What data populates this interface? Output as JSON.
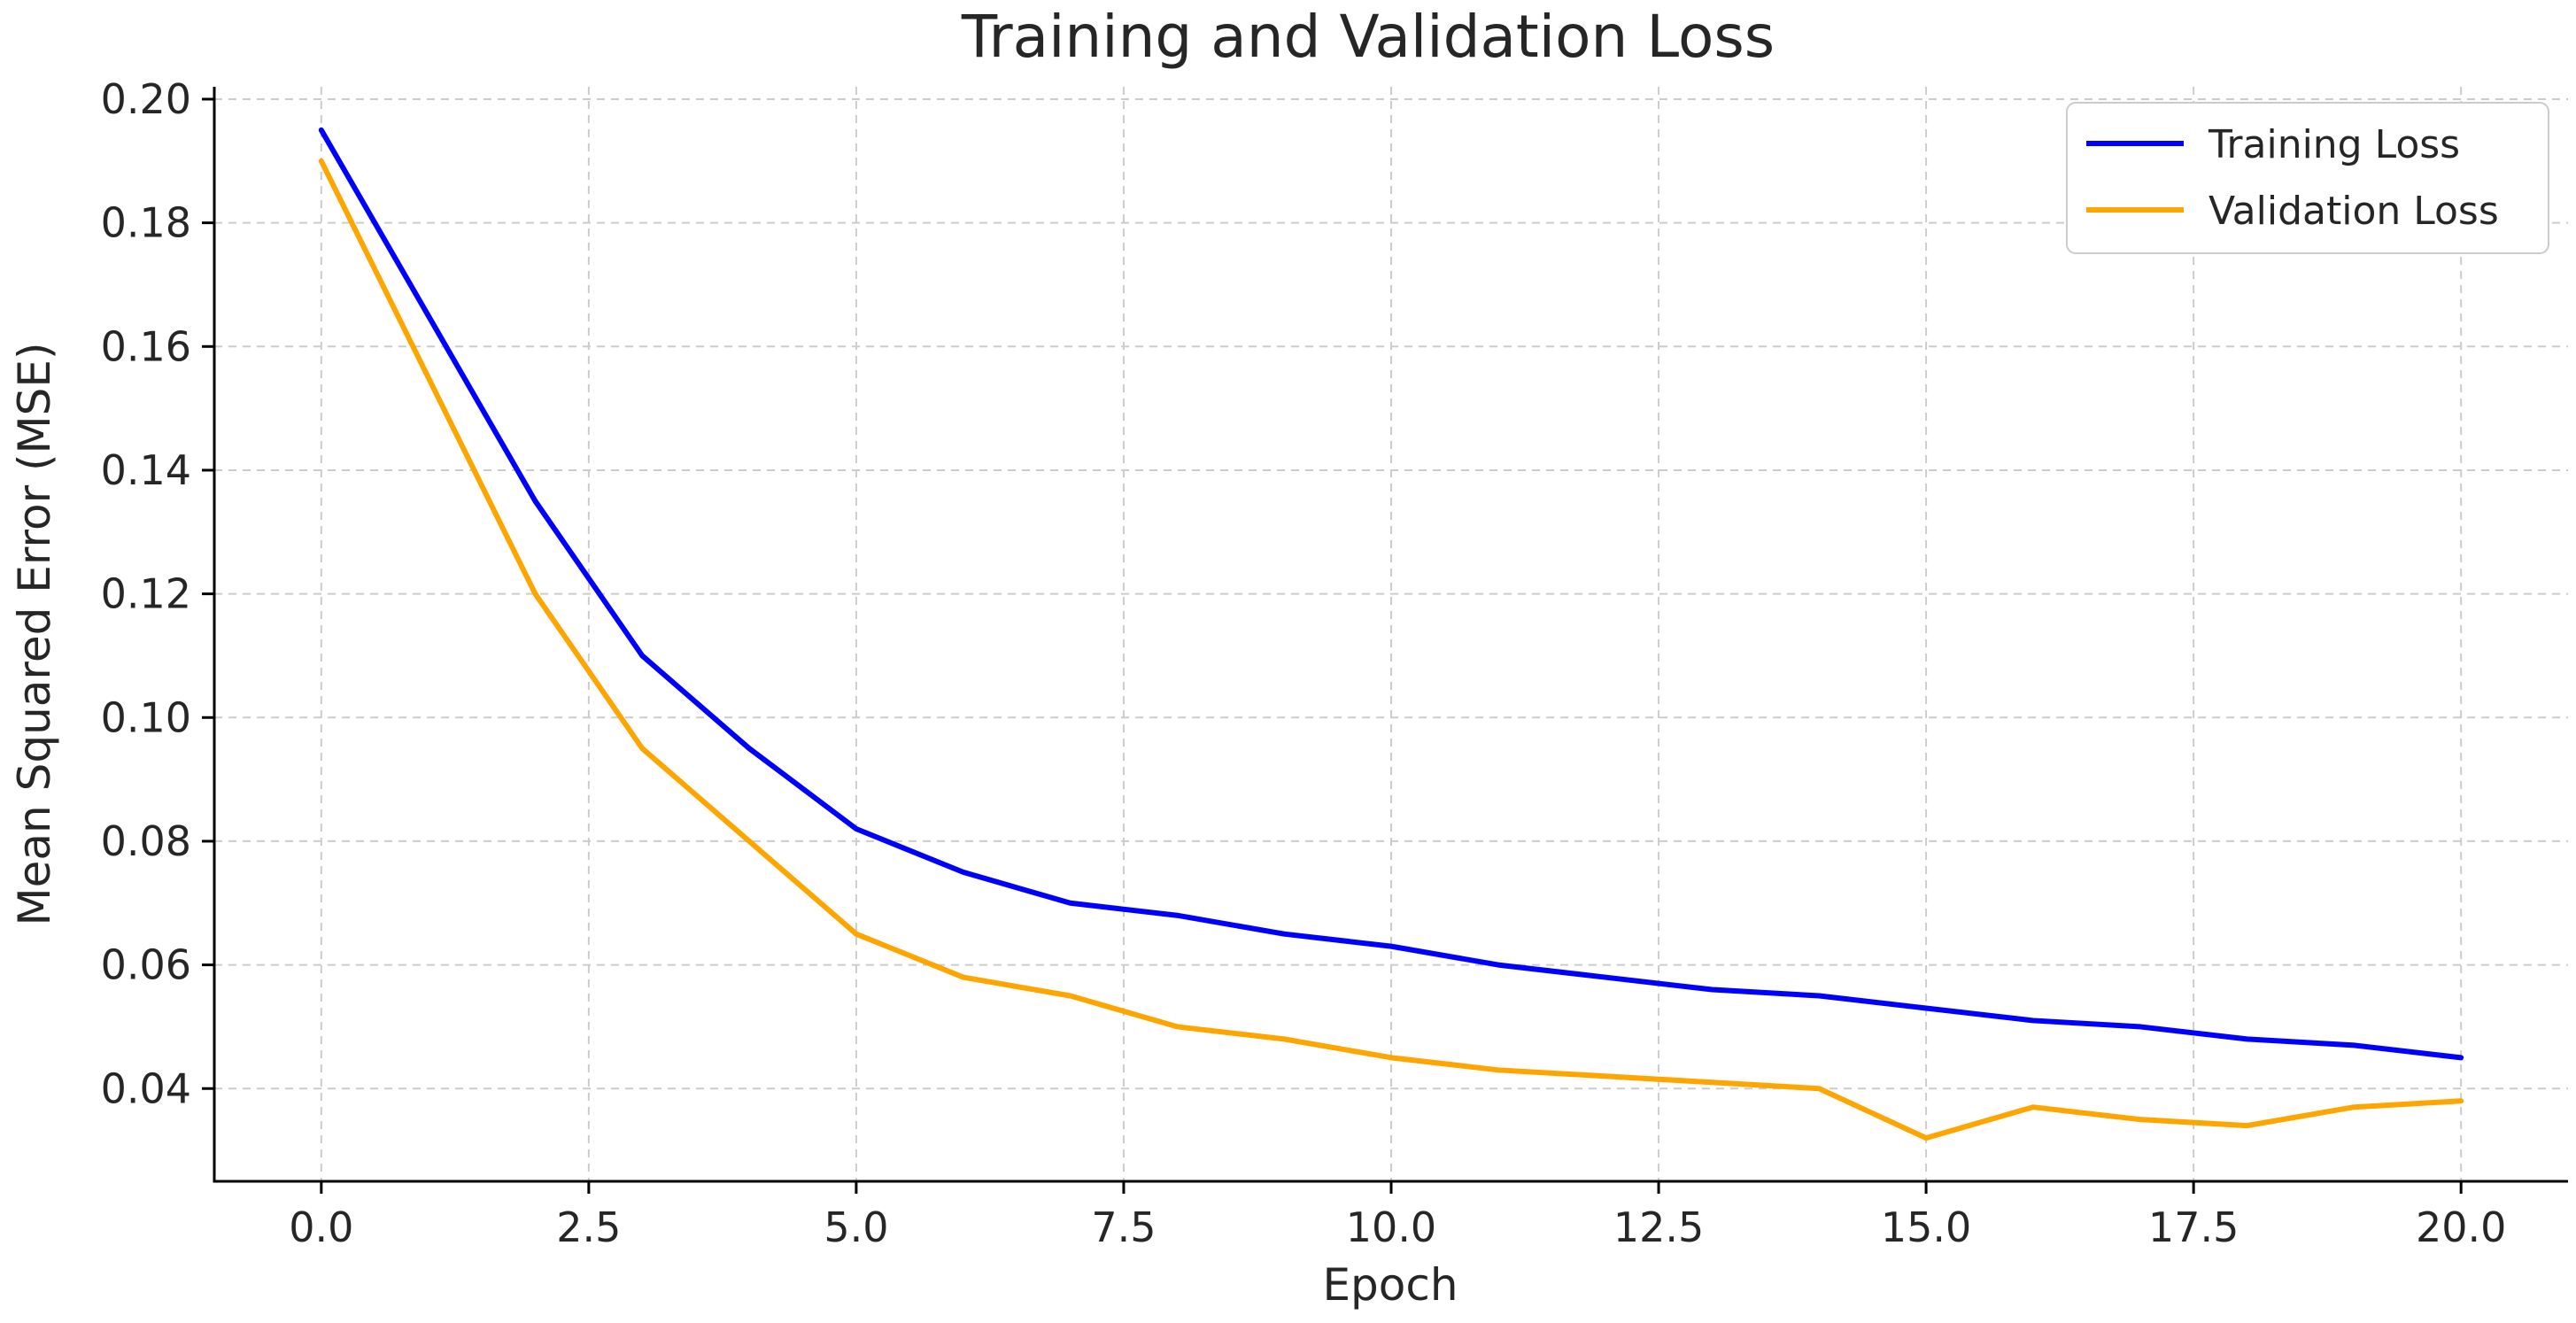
{
  "chart_data": {
    "type": "line",
    "title": "Training and Validation Loss",
    "xlabel": "Epoch",
    "ylabel": "Mean Squared Error (MSE)",
    "xlim": [
      -1,
      21
    ],
    "ylim": [
      0.025,
      0.202
    ],
    "xticks": [
      0,
      2.5,
      5,
      7.5,
      10,
      12.5,
      15,
      17.5,
      20
    ],
    "xtick_labels": [
      "0.0",
      "2.5",
      "5.0",
      "7.5",
      "10.0",
      "12.5",
      "15.0",
      "17.5",
      "20.0"
    ],
    "yticks": [
      0.04,
      0.06,
      0.08,
      0.1,
      0.12,
      0.14,
      0.16,
      0.18,
      0.2
    ],
    "ytick_labels": [
      "0.04",
      "0.06",
      "0.08",
      "0.10",
      "0.12",
      "0.14",
      "0.16",
      "0.18",
      "0.20"
    ],
    "grid": true,
    "legend_position": "top-right",
    "x": [
      0,
      2,
      3,
      4,
      5,
      6,
      7,
      8,
      9,
      10,
      11,
      12,
      13,
      14,
      15,
      16,
      17,
      18,
      19,
      20
    ],
    "series": [
      {
        "name": "Training Loss",
        "color": "#0000ff",
        "values": [
          0.195,
          0.135,
          0.11,
          0.095,
          0.082,
          0.075,
          0.07,
          0.068,
          0.065,
          0.063,
          0.06,
          0.058,
          0.056,
          0.055,
          0.053,
          0.051,
          0.05,
          0.048,
          0.047,
          0.045
        ]
      },
      {
        "name": "Validation Loss",
        "color": "#ffa500",
        "values": [
          0.19,
          0.12,
          0.095,
          0.08,
          0.065,
          0.058,
          0.055,
          0.05,
          0.048,
          0.045,
          0.043,
          0.042,
          0.041,
          0.04,
          0.032,
          0.037,
          0.035,
          0.034,
          0.037,
          0.038
        ]
      }
    ]
  }
}
